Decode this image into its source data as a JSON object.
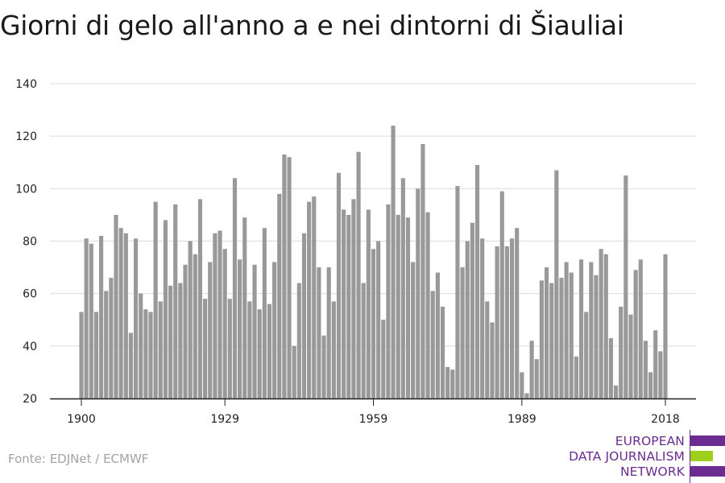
{
  "chart_data": {
    "type": "bar",
    "title": "Giorni di gelo all'anno a e nei dintorni di Šiauliai",
    "xlabel": "",
    "ylabel": "",
    "ylim": [
      20,
      140
    ],
    "yticks": [
      20,
      40,
      60,
      80,
      100,
      120,
      140
    ],
    "xticks": [
      1900,
      1929,
      1959,
      1989,
      2018
    ],
    "xrange": [
      1900,
      2018
    ],
    "grid": true,
    "bar_color": "#999999",
    "years": [
      1900,
      1901,
      1902,
      1903,
      1904,
      1905,
      1906,
      1907,
      1908,
      1909,
      1910,
      1911,
      1912,
      1913,
      1914,
      1915,
      1916,
      1917,
      1918,
      1919,
      1920,
      1921,
      1922,
      1923,
      1924,
      1925,
      1926,
      1927,
      1928,
      1929,
      1930,
      1931,
      1932,
      1933,
      1934,
      1935,
      1936,
      1937,
      1938,
      1939,
      1940,
      1941,
      1942,
      1943,
      1944,
      1945,
      1946,
      1947,
      1948,
      1949,
      1950,
      1951,
      1952,
      1953,
      1954,
      1955,
      1956,
      1957,
      1958,
      1959,
      1960,
      1961,
      1962,
      1963,
      1964,
      1965,
      1966,
      1967,
      1968,
      1969,
      1970,
      1971,
      1972,
      1973,
      1974,
      1975,
      1976,
      1977,
      1978,
      1979,
      1980,
      1981,
      1982,
      1983,
      1984,
      1985,
      1986,
      1987,
      1988,
      1989,
      1990,
      1991,
      1992,
      1993,
      1994,
      1995,
      1996,
      1997,
      1998,
      1999,
      2000,
      2001,
      2002,
      2003,
      2004,
      2005,
      2006,
      2007,
      2008,
      2009,
      2010,
      2011,
      2012,
      2013,
      2014,
      2015,
      2016,
      2017,
      2018
    ],
    "values": [
      53,
      81,
      79,
      53,
      82,
      61,
      66,
      90,
      85,
      83,
      45,
      81,
      60,
      54,
      53,
      95,
      57,
      88,
      63,
      94,
      64,
      71,
      80,
      75,
      96,
      58,
      72,
      83,
      84,
      77,
      58,
      104,
      73,
      89,
      57,
      71,
      54,
      85,
      56,
      72,
      98,
      113,
      112,
      40,
      64,
      83,
      95,
      97,
      70,
      44,
      70,
      57,
      106,
      92,
      90,
      96,
      114,
      64,
      92,
      77,
      80,
      50,
      94,
      124,
      90,
      104,
      89,
      72,
      100,
      117,
      91,
      61,
      68,
      55,
      32,
      31,
      101,
      70,
      80,
      87,
      109,
      81,
      57,
      49,
      78,
      99,
      78,
      81,
      85,
      30,
      22,
      42,
      35,
      65,
      70,
      64,
      107,
      66,
      72,
      68,
      36,
      73,
      53,
      72,
      67,
      77,
      75,
      43,
      25,
      55,
      105,
      52,
      69,
      73,
      42,
      30,
      46,
      38,
      75
    ]
  },
  "source": "Fonte: EDJNet / ECMWF",
  "logo": {
    "lines": [
      "EUROPEAN",
      "DATA JOURNALISM",
      "NETWORK"
    ],
    "colors": {
      "purple": "#6b2c91",
      "green": "#9ecf1d"
    }
  }
}
